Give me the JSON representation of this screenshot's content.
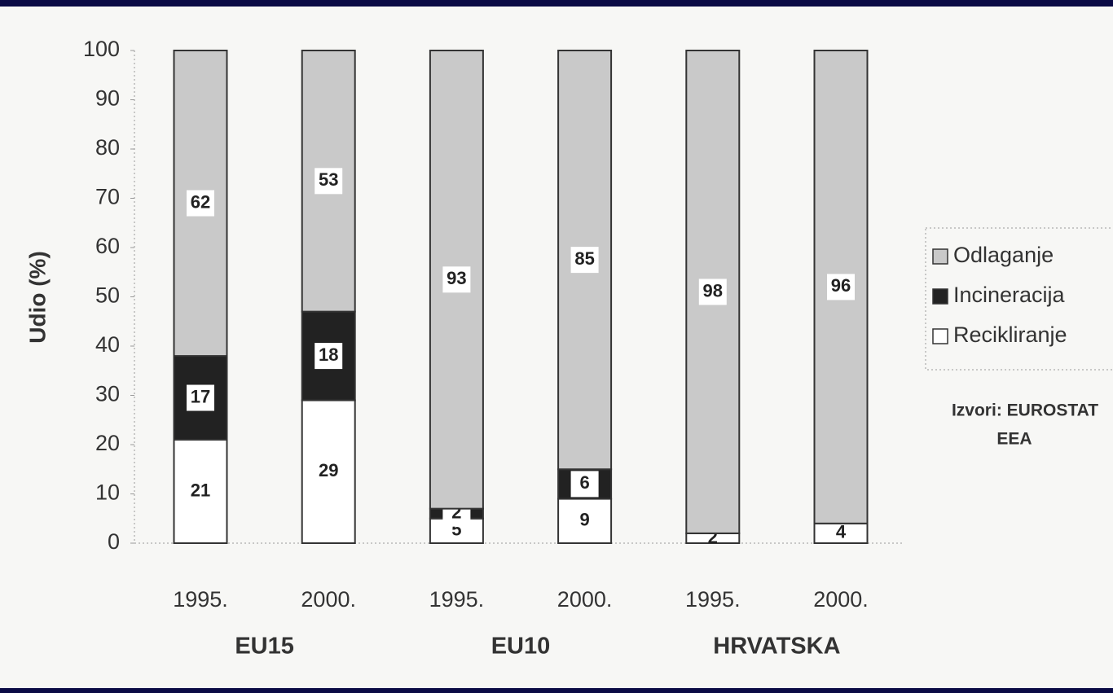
{
  "chart_data": {
    "type": "stacked_bar",
    "y_label": "Udio (%)",
    "categories": [
      "1995.",
      "2000.",
      "1995.",
      "2000.",
      "1995.",
      "2000."
    ],
    "groups": [
      "EU15",
      "EU10",
      "HRVATSKA"
    ],
    "series": [
      {
        "name": "Recikliranje",
        "color": "#ffffff",
        "values": [
          21,
          29,
          5,
          9,
          2,
          4
        ]
      },
      {
        "name": "Incineracija",
        "color": "#222222",
        "values": [
          17,
          18,
          2,
          6,
          0,
          0
        ]
      },
      {
        "name": "Odlaganje",
        "color": "#c9c9c9",
        "values": [
          62,
          53,
          93,
          85,
          98,
          96
        ]
      }
    ],
    "ylim": [
      0,
      100
    ],
    "yticks": [
      0,
      10,
      20,
      30,
      40,
      50,
      60,
      70,
      80,
      90,
      100
    ],
    "legend": "right",
    "source": [
      "Izvori: EUROSTAT",
      "EEA"
    ]
  }
}
